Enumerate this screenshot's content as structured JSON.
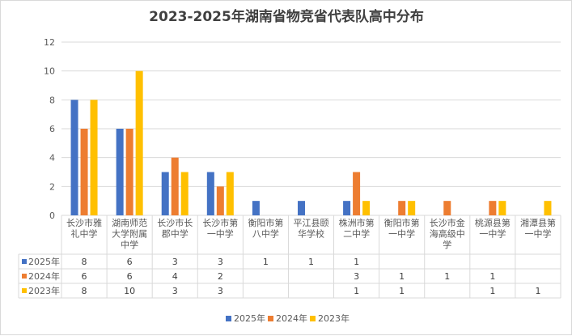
{
  "chart_data": {
    "type": "bar",
    "title": "2023-2025年湖南省物竞省代表队高中分布",
    "xlabel": "",
    "ylabel": "",
    "ylim": [
      0,
      12
    ],
    "yticks": [
      "0",
      "2",
      "4",
      "6",
      "8",
      "10",
      "12"
    ],
    "grid": true,
    "legend_position": "bottom",
    "data_table": true,
    "categories": [
      [
        "长沙市雅",
        "礼中学"
      ],
      [
        "湖南师范",
        "大学附属",
        "中学"
      ],
      [
        "长沙市长",
        "郡中学"
      ],
      [
        "长沙市第",
        "一中学"
      ],
      [
        "衡阳市第",
        "八中学"
      ],
      [
        "平江县颐",
        "华学校"
      ],
      [
        "株洲市第",
        "二中学"
      ],
      [
        "衡阳市第",
        "一中学"
      ],
      [
        "长沙市金",
        "海高级中",
        "学"
      ],
      [
        "桃源县第",
        "一中学"
      ],
      [
        "湘潭县第",
        "一中学"
      ]
    ],
    "series": [
      {
        "name": "2025年",
        "color": "#4472c4",
        "values": [
          8,
          6,
          3,
          3,
          1,
          1,
          1,
          null,
          null,
          null,
          null
        ],
        "labels": [
          "8",
          "6",
          "3",
          "3",
          "1",
          "1",
          "1",
          "",
          "",
          "",
          ""
        ]
      },
      {
        "name": "2024年",
        "color": "#ed7d31",
        "values": [
          6,
          6,
          4,
          2,
          null,
          null,
          3,
          1,
          1,
          1,
          null
        ],
        "labels": [
          "6",
          "6",
          "4",
          "2",
          "",
          "",
          "3",
          "1",
          "1",
          "1",
          ""
        ]
      },
      {
        "name": "2023年",
        "color": "#ffc000",
        "values": [
          8,
          10,
          3,
          3,
          null,
          null,
          1,
          1,
          null,
          1,
          1
        ],
        "labels": [
          "8",
          "10",
          "3",
          "3",
          "",
          "",
          "1",
          "1",
          "",
          "1",
          "1"
        ]
      }
    ]
  }
}
